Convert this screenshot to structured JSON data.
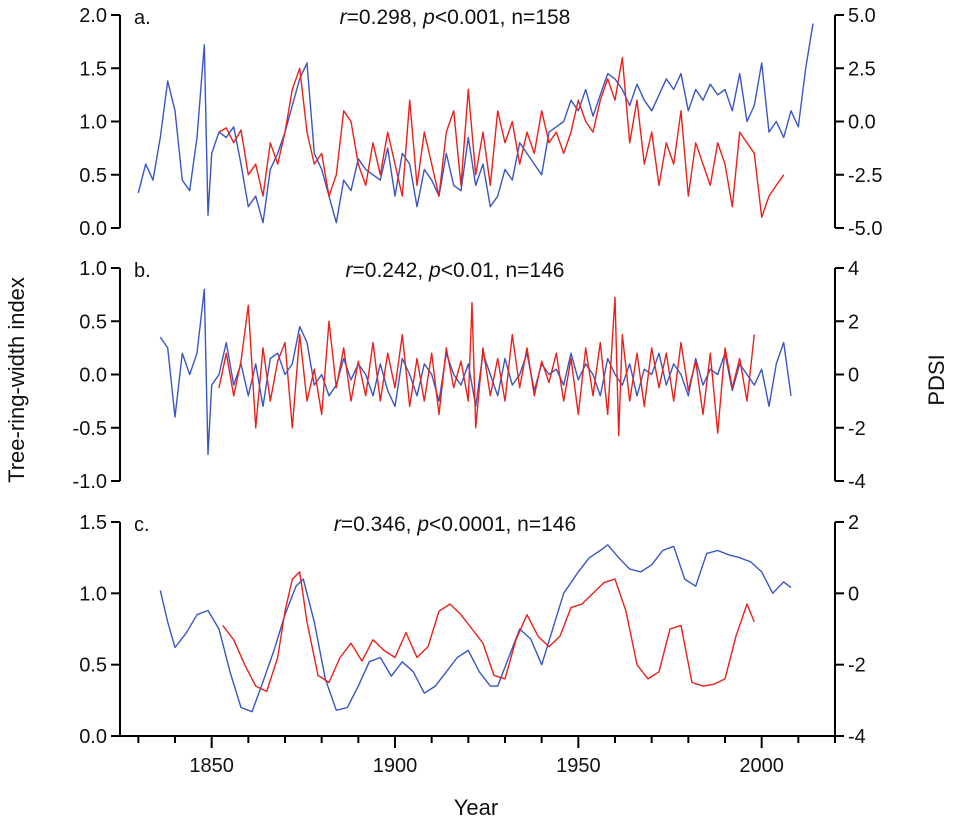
{
  "figure": {
    "x_label": "Year",
    "left_label": "Tree-ring-width index",
    "right_label": "PDSI",
    "x_ticks": [
      1850,
      1900,
      1950,
      2000
    ]
  },
  "chart_data": [
    {
      "type": "line",
      "panel": "a.",
      "stats": {
        "r": "0.298",
        "p": "<0.001",
        "n": "n=158"
      },
      "xlim": [
        1825,
        2020
      ],
      "ylim_left": [
        0,
        2
      ],
      "yticks_left": [
        "0.0",
        "0.5",
        "1.0",
        "1.5",
        "2.0"
      ],
      "ylim_right": [
        -5,
        5
      ],
      "yticks_right": [
        "-5.0",
        "-2.5",
        "0.0",
        "2.5",
        "5.0"
      ],
      "series": [
        {
          "color": "#3a56c4",
          "axis": "left",
          "x": [
            1830,
            1832,
            1834,
            1836,
            1838,
            1840,
            1842,
            1844,
            1846,
            1848,
            1849,
            1850,
            1852,
            1854,
            1856,
            1858,
            1860,
            1862,
            1864,
            1866,
            1868,
            1870,
            1872,
            1874,
            1876,
            1878,
            1880,
            1882,
            1884,
            1886,
            1888,
            1890,
            1892,
            1894,
            1896,
            1898,
            1900,
            1902,
            1904,
            1906,
            1908,
            1910,
            1912,
            1914,
            1916,
            1918,
            1920,
            1922,
            1924,
            1926,
            1928,
            1930,
            1932,
            1934,
            1936,
            1938,
            1940,
            1942,
            1944,
            1946,
            1948,
            1950,
            1952,
            1954,
            1956,
            1958,
            1960,
            1962,
            1964,
            1966,
            1968,
            1970,
            1972,
            1974,
            1976,
            1978,
            1980,
            1982,
            1984,
            1986,
            1988,
            1990,
            1992,
            1994,
            1996,
            1998,
            2000,
            2002,
            2004,
            2006,
            2008,
            2010,
            2012,
            2014
          ],
          "values": [
            0.33,
            0.6,
            0.45,
            0.85,
            1.38,
            1.1,
            0.45,
            0.35,
            0.85,
            1.72,
            0.12,
            0.7,
            0.9,
            0.85,
            0.95,
            0.6,
            0.2,
            0.3,
            0.05,
            0.55,
            0.7,
            0.9,
            1.15,
            1.4,
            1.55,
            0.7,
            0.55,
            0.3,
            0.05,
            0.45,
            0.35,
            0.65,
            0.55,
            0.5,
            0.45,
            0.75,
            0.3,
            0.7,
            0.6,
            0.2,
            0.55,
            0.45,
            0.3,
            0.7,
            0.4,
            0.35,
            0.85,
            0.4,
            0.6,
            0.2,
            0.3,
            0.55,
            0.45,
            0.8,
            0.7,
            0.6,
            0.5,
            0.9,
            0.95,
            1.0,
            1.2,
            1.1,
            1.3,
            1.05,
            1.25,
            1.45,
            1.4,
            1.3,
            1.15,
            1.35,
            1.2,
            1.1,
            1.25,
            1.4,
            1.3,
            1.45,
            1.1,
            1.3,
            1.2,
            1.35,
            1.25,
            1.3,
            1.1,
            1.45,
            1.0,
            1.15,
            1.55,
            0.9,
            1.0,
            0.85,
            1.1,
            0.95,
            1.5,
            1.92
          ]
        },
        {
          "color": "#e8211a",
          "axis": "right",
          "x": [
            1852,
            1854,
            1856,
            1858,
            1860,
            1862,
            1864,
            1866,
            1868,
            1870,
            1872,
            1874,
            1876,
            1878,
            1880,
            1882,
            1884,
            1886,
            1888,
            1890,
            1892,
            1894,
            1896,
            1898,
            1900,
            1902,
            1904,
            1906,
            1908,
            1910,
            1912,
            1914,
            1916,
            1918,
            1920,
            1922,
            1924,
            1926,
            1928,
            1930,
            1932,
            1934,
            1936,
            1938,
            1940,
            1942,
            1944,
            1946,
            1948,
            1950,
            1952,
            1954,
            1956,
            1958,
            1960,
            1962,
            1964,
            1966,
            1968,
            1970,
            1972,
            1974,
            1976,
            1978,
            1980,
            1982,
            1984,
            1986,
            1988,
            1990,
            1992,
            1994,
            1996,
            1998,
            2000,
            2002,
            2004,
            2006
          ],
          "values": [
            -0.5,
            -0.3,
            -1.0,
            -0.4,
            -2.5,
            -2.0,
            -3.5,
            -1.0,
            -2.0,
            -0.5,
            1.5,
            2.5,
            -0.5,
            -2.0,
            -1.5,
            -3.5,
            -2.5,
            0.5,
            0.0,
            -2.0,
            -3.0,
            -1.0,
            -2.5,
            -0.5,
            -2.0,
            -3.5,
            1.0,
            -3.0,
            -0.5,
            -2.0,
            -3.5,
            -0.5,
            0.5,
            -3.0,
            1.5,
            -2.5,
            -0.5,
            -3.0,
            0.5,
            -1.0,
            0.0,
            -2.0,
            -0.5,
            -1.5,
            0.5,
            -1.0,
            -0.5,
            -1.5,
            -0.5,
            1.0,
            0.0,
            -0.5,
            1.0,
            2.0,
            1.0,
            3.0,
            -1.0,
            1.0,
            -2.0,
            -0.5,
            -3.0,
            -1.0,
            -2.0,
            0.5,
            -3.5,
            -1.0,
            -2.0,
            -3.0,
            -1.0,
            -2.0,
            -4.0,
            -0.5,
            -1.0,
            -1.5,
            -4.5,
            -3.5,
            -3.0,
            -2.5
          ]
        }
      ]
    },
    {
      "type": "line",
      "panel": "b.",
      "stats": {
        "r": "0.242",
        "p": "<0.01",
        "n": "n=146"
      },
      "xlim": [
        1825,
        2020
      ],
      "ylim_left": [
        -1,
        1
      ],
      "yticks_left": [
        "-1.0",
        "-0.5",
        "0.0",
        "0.5",
        "1.0"
      ],
      "ylim_right": [
        -4,
        4
      ],
      "yticks_right": [
        "-4",
        "-2",
        "0",
        "2",
        "4"
      ],
      "series": [
        {
          "color": "#3a56c4",
          "axis": "left",
          "x": [
            1836,
            1838,
            1840,
            1842,
            1844,
            1846,
            1848,
            1849,
            1850,
            1852,
            1854,
            1856,
            1858,
            1860,
            1862,
            1864,
            1866,
            1868,
            1870,
            1872,
            1874,
            1876,
            1878,
            1880,
            1882,
            1884,
            1886,
            1888,
            1890,
            1892,
            1894,
            1896,
            1898,
            1900,
            1902,
            1904,
            1906,
            1908,
            1910,
            1912,
            1914,
            1916,
            1918,
            1920,
            1922,
            1924,
            1926,
            1928,
            1930,
            1932,
            1934,
            1936,
            1938,
            1940,
            1942,
            1944,
            1946,
            1948,
            1950,
            1952,
            1954,
            1956,
            1958,
            1960,
            1962,
            1964,
            1966,
            1968,
            1970,
            1972,
            1974,
            1976,
            1978,
            1980,
            1982,
            1984,
            1986,
            1988,
            1990,
            1992,
            1994,
            1996,
            1998,
            2000,
            2002,
            2004,
            2006,
            2008
          ],
          "values": [
            0.35,
            0.25,
            -0.4,
            0.2,
            0.0,
            0.2,
            0.8,
            -0.75,
            -0.1,
            0.0,
            0.3,
            -0.1,
            0.1,
            -0.2,
            0.1,
            -0.3,
            0.15,
            0.2,
            0.0,
            0.1,
            0.45,
            0.3,
            -0.1,
            0.0,
            -0.2,
            -0.1,
            0.15,
            -0.05,
            0.1,
            0.0,
            -0.2,
            0.1,
            -0.15,
            -0.3,
            0.15,
            0.0,
            -0.2,
            0.1,
            0.0,
            -0.25,
            0.2,
            0.0,
            -0.1,
            0.1,
            -0.3,
            0.2,
            0.0,
            -0.2,
            0.15,
            -0.1,
            0.0,
            0.2,
            -0.15,
            0.1,
            0.0,
            0.05,
            -0.1,
            0.2,
            -0.05,
            0.1,
            0.0,
            -0.2,
            0.15,
            0.0,
            -0.1,
            0.1,
            -0.2,
            0.05,
            0.0,
            0.2,
            -0.1,
            0.1,
            0.0,
            -0.2,
            0.15,
            -0.1,
            0.05,
            0.0,
            0.2,
            -0.15,
            0.1,
            0.0,
            -0.1,
            0.05,
            -0.3,
            0.1,
            0.3,
            -0.2
          ]
        },
        {
          "color": "#e8211a",
          "axis": "right",
          "x": [
            1852,
            1854,
            1856,
            1858,
            1860,
            1862,
            1864,
            1866,
            1868,
            1870,
            1872,
            1874,
            1876,
            1878,
            1880,
            1882,
            1884,
            1886,
            1888,
            1890,
            1892,
            1894,
            1896,
            1898,
            1900,
            1902,
            1904,
            1906,
            1908,
            1910,
            1912,
            1914,
            1916,
            1918,
            1920,
            1921,
            1922,
            1924,
            1926,
            1928,
            1930,
            1932,
            1934,
            1936,
            1938,
            1940,
            1942,
            1944,
            1946,
            1948,
            1950,
            1952,
            1954,
            1956,
            1958,
            1960,
            1961,
            1962,
            1964,
            1966,
            1968,
            1970,
            1972,
            1974,
            1976,
            1978,
            1980,
            1982,
            1984,
            1986,
            1988,
            1990,
            1992,
            1994,
            1996,
            1998
          ],
          "values": [
            -0.5,
            0.8,
            -0.8,
            0.5,
            2.6,
            -2.0,
            1.0,
            -1.0,
            0.5,
            1.2,
            -2.0,
            1.5,
            -1.0,
            0.2,
            -1.5,
            2.0,
            -0.5,
            1.0,
            -1.0,
            0.5,
            -0.8,
            1.2,
            -1.0,
            0.8,
            -0.5,
            1.5,
            -1.2,
            0.6,
            -1.0,
            0.8,
            -1.5,
            1.0,
            -0.5,
            0.5,
            -1.0,
            2.7,
            -2.0,
            1.0,
            -0.8,
            0.6,
            -1.0,
            1.5,
            -0.5,
            1.0,
            -0.8,
            0.5,
            -0.3,
            0.8,
            -1.0,
            0.6,
            -1.5,
            1.0,
            -0.8,
            1.2,
            -1.5,
            2.9,
            -2.3,
            1.5,
            -1.0,
            0.8,
            -1.2,
            1.0,
            -0.5,
            0.8,
            -1.0,
            1.2,
            -0.6,
            0.5,
            -1.5,
            0.8,
            -2.2,
            1.0,
            -0.5,
            0.6,
            -1.0,
            1.5
          ]
        }
      ]
    },
    {
      "type": "line",
      "panel": "c.",
      "stats": {
        "r": "0.346",
        "p": "<0.0001",
        "n": "n=146"
      },
      "xlim": [
        1825,
        2020
      ],
      "ylim_left": [
        0,
        1.5
      ],
      "yticks_left": [
        "0.0",
        "0.5",
        "1.0",
        "1.5"
      ],
      "ylim_right": [
        -4,
        2
      ],
      "yticks_right": [
        "-4",
        "-2",
        "0",
        "2"
      ],
      "series": [
        {
          "color": "#3a56c4",
          "axis": "left",
          "x": [
            1836,
            1838,
            1840,
            1843,
            1846,
            1849,
            1852,
            1855,
            1858,
            1861,
            1864,
            1867,
            1870,
            1873,
            1875,
            1878,
            1881,
            1884,
            1887,
            1890,
            1893,
            1896,
            1899,
            1902,
            1905,
            1908,
            1911,
            1914,
            1917,
            1920,
            1923,
            1926,
            1928,
            1931,
            1934,
            1937,
            1940,
            1943,
            1946,
            1950,
            1953,
            1956,
            1958,
            1961,
            1964,
            1967,
            1970,
            1973,
            1976,
            1979,
            1982,
            1985,
            1988,
            1991,
            1994,
            1997,
            2000,
            2003,
            2006,
            2008
          ],
          "values": [
            1.02,
            0.8,
            0.62,
            0.72,
            0.85,
            0.88,
            0.75,
            0.45,
            0.2,
            0.17,
            0.38,
            0.6,
            0.85,
            1.05,
            1.1,
            0.8,
            0.4,
            0.18,
            0.2,
            0.35,
            0.52,
            0.55,
            0.42,
            0.52,
            0.45,
            0.3,
            0.35,
            0.45,
            0.55,
            0.6,
            0.45,
            0.35,
            0.35,
            0.55,
            0.75,
            0.68,
            0.5,
            0.75,
            1.0,
            1.15,
            1.25,
            1.3,
            1.34,
            1.25,
            1.17,
            1.15,
            1.2,
            1.3,
            1.33,
            1.1,
            1.05,
            1.28,
            1.3,
            1.27,
            1.25,
            1.22,
            1.15,
            1.0,
            1.08,
            1.04
          ],
          "axis_note": ""
        },
        {
          "color": "#e8211a",
          "axis": "right",
          "x": [
            1853,
            1856,
            1859,
            1862,
            1865,
            1868,
            1870,
            1872,
            1874,
            1876,
            1879,
            1882,
            1885,
            1888,
            1891,
            1894,
            1897,
            1900,
            1903,
            1906,
            1909,
            1912,
            1915,
            1918,
            1921,
            1924,
            1927,
            1930,
            1933,
            1936,
            1939,
            1942,
            1945,
            1948,
            1951,
            1954,
            1957,
            1960,
            1963,
            1966,
            1969,
            1972,
            1975,
            1978,
            1981,
            1984,
            1987,
            1990,
            1993,
            1996,
            1998
          ],
          "values": [
            -0.9,
            -1.3,
            -2.0,
            -2.6,
            -2.75,
            -1.8,
            -0.5,
            0.4,
            0.6,
            -0.8,
            -2.3,
            -2.5,
            -1.8,
            -1.4,
            -1.9,
            -1.3,
            -1.6,
            -1.8,
            -1.1,
            -1.8,
            -1.5,
            -0.5,
            -0.3,
            -0.6,
            -1.0,
            -1.4,
            -2.3,
            -2.4,
            -1.3,
            -0.6,
            -1.2,
            -1.5,
            -1.2,
            -0.4,
            -0.3,
            0.0,
            0.3,
            0.4,
            -0.5,
            -2.0,
            -2.4,
            -2.2,
            -1.0,
            -0.9,
            -2.5,
            -2.6,
            -2.55,
            -2.4,
            -1.2,
            -0.3,
            -0.8
          ]
        }
      ]
    }
  ]
}
